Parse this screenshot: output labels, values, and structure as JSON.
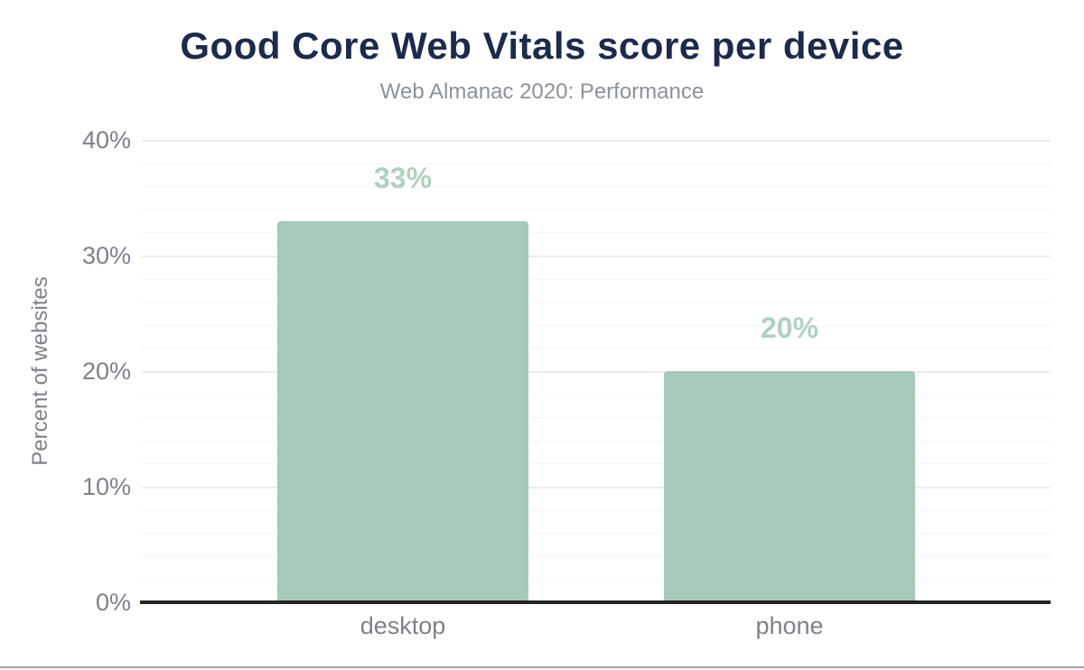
{
  "chart_data": {
    "type": "bar",
    "title": "Good Core Web Vitals score per device",
    "subtitle": "Web Almanac 2020: Performance",
    "categories": [
      "desktop",
      "phone"
    ],
    "values": [
      33,
      20
    ],
    "value_labels": [
      "33%",
      "20%"
    ],
    "xlabel": "",
    "ylabel": "Percent of websites",
    "ylim": [
      0,
      40
    ],
    "y_major_step": 10,
    "y_minor_step": 2,
    "y_tick_labels": [
      "0%",
      "10%",
      "20%",
      "30%",
      "40%"
    ],
    "grid": true,
    "legend": "none"
  },
  "colors": {
    "title": "#1c2b4b",
    "subtitle": "#8b929b",
    "axis_text": "#7c828a",
    "axis_line": "#252525",
    "bar": "#a7c9b8",
    "data_label": "#b1d1c0",
    "grid_major": "#ececec",
    "grid_minor": "#f6f6f6",
    "bottom_rule": "#a5a5a5"
  }
}
